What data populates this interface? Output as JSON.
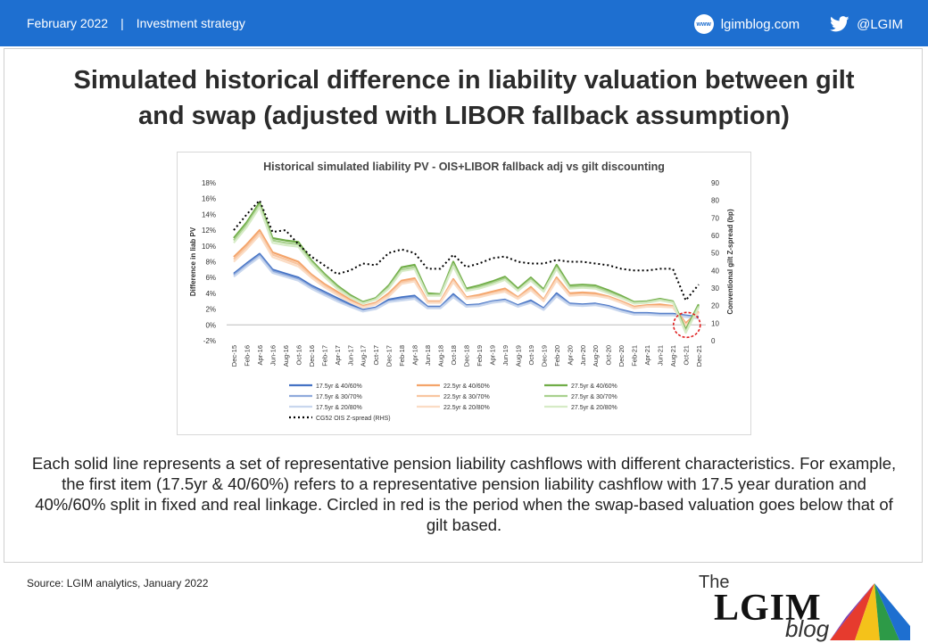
{
  "header": {
    "date": "February 2022",
    "separator": "|",
    "category": "Investment strategy",
    "site_icon_text": "www",
    "site": "lgimblog.com",
    "handle": "@LGIM",
    "bar_color": "#1e6fd0",
    "icons": [
      "www-icon",
      "twitter-icon"
    ]
  },
  "slide": {
    "title_line1": "Simulated historical difference in liability valuation between gilt",
    "title_line2": "and swap (adjusted with LIBOR fallback assumption)",
    "body": "Each solid line represents a set of representative pension liability cashflows with different characteristics. For example,  the first item (17.5yr & 40/60%) refers to a representative pension liability cashflow with 17.5 year duration and 40%/60% split in fixed and real linkage. Circled in red is the period when the swap-based valuation goes below that of gilt based.",
    "source": "Source: LGIM analytics, January 2022"
  },
  "logo": {
    "the": "The",
    "lgim": "LGIM",
    "blog": "blog"
  },
  "chart_data": {
    "type": "line",
    "title": "Historical simulated liability PV - OIS+LIBOR fallback adj vs gilt discounting",
    "ylabel": "Difference in liab PV",
    "y2label": "Conventional gilt Z-spread (bp)",
    "ylim": [
      -2,
      18
    ],
    "y2lim": [
      0,
      90
    ],
    "yticks": [
      "-2%",
      "0%",
      "2%",
      "4%",
      "6%",
      "8%",
      "10%",
      "12%",
      "14%",
      "16%",
      "18%"
    ],
    "y2ticks": [
      "0",
      "10",
      "20",
      "30",
      "40",
      "50",
      "60",
      "70",
      "80",
      "90"
    ],
    "grid": false,
    "legend": "bottom",
    "categories": [
      "Dec-15",
      "Feb-16",
      "Apr-16",
      "Jun-16",
      "Aug-16",
      "Oct-16",
      "Dec-16",
      "Feb-17",
      "Apr-17",
      "Jun-17",
      "Aug-17",
      "Oct-17",
      "Dec-17",
      "Feb-18",
      "Apr-18",
      "Jun-18",
      "Aug-18",
      "Oct-18",
      "Dec-18",
      "Feb-19",
      "Apr-19",
      "Jun-19",
      "Aug-19",
      "Oct-19",
      "Dec-19",
      "Feb-20",
      "Apr-20",
      "Jun-20",
      "Aug-20",
      "Oct-20",
      "Dec-20",
      "Feb-21",
      "Apr-21",
      "Jun-21",
      "Aug-21",
      "Oct-21",
      "Dec-21"
    ],
    "series": [
      {
        "name": "17.5yr & 40/60%",
        "axis": "left",
        "color": "#4472c4",
        "values": [
          6.5,
          7.8,
          9.0,
          7.0,
          6.5,
          6.0,
          5.0,
          4.2,
          3.4,
          2.6,
          1.9,
          2.2,
          3.2,
          3.5,
          3.7,
          2.3,
          2.3,
          3.9,
          2.5,
          2.6,
          3.0,
          3.2,
          2.5,
          3.1,
          2.1,
          4.0,
          2.7,
          2.6,
          2.7,
          2.4,
          1.9,
          1.5,
          1.5,
          1.4,
          1.4,
          1.2,
          1.0
        ]
      },
      {
        "name": "17.5yr & 30/70%",
        "axis": "left",
        "color": "#8faadc",
        "values": [
          6.3,
          7.6,
          8.8,
          6.8,
          6.3,
          5.8,
          4.8,
          4.0,
          3.2,
          2.4,
          1.8,
          2.1,
          3.0,
          3.3,
          3.5,
          2.2,
          2.2,
          3.7,
          2.4,
          2.5,
          2.9,
          3.1,
          2.4,
          2.9,
          2.0,
          3.8,
          2.6,
          2.5,
          2.6,
          2.3,
          1.8,
          1.4,
          1.4,
          1.3,
          1.3,
          1.1,
          0.9
        ]
      },
      {
        "name": "17.5yr & 20/80%",
        "axis": "left",
        "color": "#c9d7ee",
        "values": [
          6.1,
          7.4,
          8.6,
          6.6,
          6.1,
          5.6,
          4.6,
          3.8,
          3.0,
          2.3,
          1.7,
          2.0,
          2.9,
          3.1,
          3.3,
          2.1,
          2.1,
          3.5,
          2.3,
          2.4,
          2.8,
          3.0,
          2.3,
          2.8,
          1.9,
          3.6,
          2.5,
          2.4,
          2.5,
          2.2,
          1.7,
          1.3,
          1.3,
          1.2,
          1.2,
          1.0,
          0.8
        ]
      },
      {
        "name": "22.5yr & 40/60%",
        "axis": "left",
        "color": "#f4a46a",
        "values": [
          8.6,
          10.2,
          12.0,
          9.2,
          8.6,
          8.0,
          6.4,
          5.2,
          4.2,
          3.2,
          2.4,
          2.8,
          4.0,
          5.6,
          5.9,
          3.0,
          3.0,
          5.8,
          3.5,
          3.8,
          4.2,
          4.6,
          3.5,
          4.8,
          3.2,
          6.0,
          4.0,
          4.1,
          4.0,
          3.6,
          3.0,
          2.3,
          2.5,
          2.6,
          2.4,
          0.2,
          1.7
        ]
      },
      {
        "name": "22.5yr & 30/70%",
        "axis": "left",
        "color": "#f8c5a0",
        "values": [
          8.3,
          9.9,
          11.7,
          8.9,
          8.3,
          7.7,
          6.2,
          5.0,
          4.0,
          3.0,
          2.3,
          2.7,
          3.8,
          5.4,
          5.7,
          2.9,
          2.9,
          5.6,
          3.4,
          3.6,
          4.0,
          4.4,
          3.4,
          4.6,
          3.1,
          5.8,
          3.8,
          3.9,
          3.8,
          3.5,
          2.9,
          2.2,
          2.4,
          2.4,
          2.3,
          0.0,
          1.6
        ]
      },
      {
        "name": "22.5yr & 20/80%",
        "axis": "left",
        "color": "#fbdcc4",
        "values": [
          8.0,
          9.6,
          11.4,
          8.6,
          8.0,
          7.4,
          6.0,
          4.8,
          3.8,
          2.9,
          2.2,
          2.6,
          3.6,
          5.2,
          5.5,
          2.8,
          2.8,
          5.4,
          3.3,
          3.5,
          3.9,
          4.2,
          3.3,
          4.4,
          3.0,
          5.6,
          3.7,
          3.8,
          3.7,
          3.4,
          2.8,
          2.1,
          2.3,
          2.3,
          2.2,
          -0.1,
          1.5
        ]
      },
      {
        "name": "27.5yr & 40/60%",
        "axis": "left",
        "color": "#70ad47",
        "values": [
          11.0,
          13.0,
          15.5,
          11.0,
          10.7,
          10.5,
          8.2,
          6.5,
          5.0,
          3.8,
          2.9,
          3.4,
          5.0,
          7.3,
          7.6,
          4.0,
          3.9,
          8.0,
          4.6,
          5.0,
          5.5,
          6.1,
          4.6,
          6.0,
          4.5,
          7.6,
          5.0,
          5.1,
          5.0,
          4.4,
          3.7,
          2.9,
          3.0,
          3.3,
          3.0,
          -0.6,
          2.6
        ]
      },
      {
        "name": "27.5yr & 30/70%",
        "axis": "left",
        "color": "#a9d18e",
        "values": [
          10.7,
          12.7,
          15.2,
          10.7,
          10.4,
          10.2,
          8.0,
          6.3,
          4.8,
          3.6,
          2.8,
          3.3,
          4.8,
          7.0,
          7.3,
          3.8,
          3.8,
          7.7,
          4.4,
          4.8,
          5.3,
          5.9,
          4.4,
          5.8,
          4.3,
          7.3,
          4.8,
          4.9,
          4.8,
          4.2,
          3.5,
          2.8,
          2.9,
          3.2,
          2.9,
          -0.8,
          2.4
        ]
      },
      {
        "name": "27.5yr & 20/80%",
        "axis": "left",
        "color": "#d6ebc6",
        "values": [
          10.4,
          12.4,
          14.9,
          10.4,
          10.1,
          9.9,
          7.8,
          6.1,
          4.6,
          3.5,
          2.7,
          3.2,
          4.6,
          6.8,
          7.1,
          3.7,
          3.7,
          7.4,
          4.3,
          4.6,
          5.1,
          5.7,
          4.3,
          5.6,
          4.2,
          7.1,
          4.6,
          4.7,
          4.6,
          4.0,
          3.4,
          2.7,
          2.8,
          3.1,
          2.8,
          -1.0,
          2.2
        ]
      },
      {
        "name": "CG52 OIS Z-spread (RHS)",
        "axis": "right",
        "color": "#000000",
        "dashed": true,
        "values": [
          63,
          72,
          80,
          62,
          63,
          55,
          48,
          43,
          38,
          40,
          44,
          43,
          50,
          52,
          50,
          41,
          41,
          49,
          42,
          44,
          47,
          48,
          45,
          44,
          44,
          46,
          45,
          45,
          44,
          43,
          41,
          40,
          40,
          41,
          41,
          23,
          32
        ]
      }
    ],
    "highlight": {
      "category": "Nov-21",
      "color": "#e02020"
    }
  }
}
